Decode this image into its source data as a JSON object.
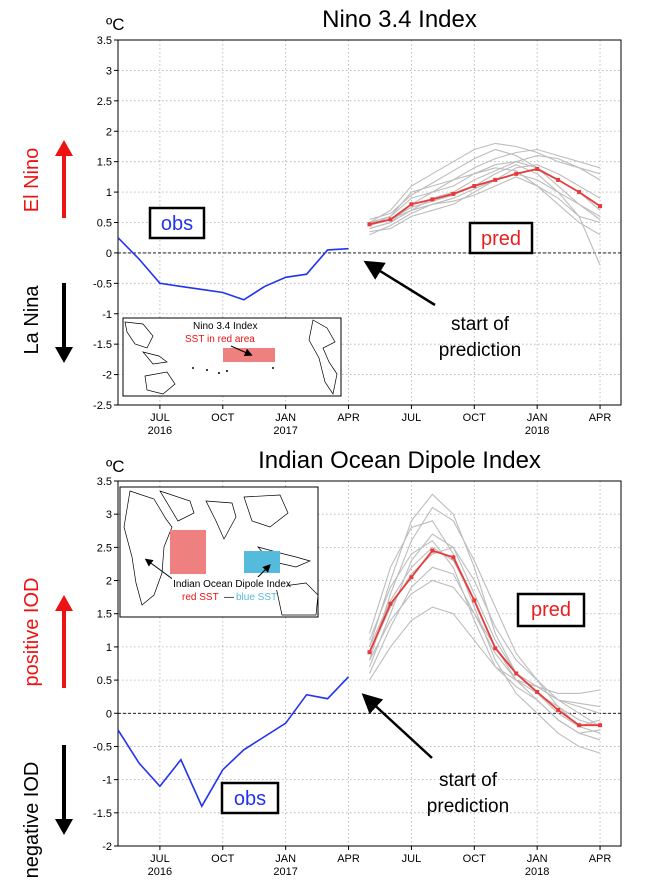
{
  "colors": {
    "obs": "#2233ee",
    "pred_mean": "#e83a3a",
    "pred_member": "#bdbdbd",
    "up": "#ee1111",
    "down": "#000000",
    "map_red": "#ee8080",
    "map_blue": "#55bbdd"
  },
  "chart_data": [
    {
      "type": "line",
      "title": "Nino 3.4 Index",
      "unit": "ºC",
      "ylim": [
        -2.5,
        3.5
      ],
      "yticks": [
        "3.5",
        "3",
        "2.5",
        "2",
        "1.5",
        "1",
        "0.5",
        "0",
        "-0.5",
        "-1",
        "-1.5",
        "-2",
        "-2.5"
      ],
      "xlim": [
        0,
        24
      ],
      "xticks": [
        {
          "x": 2,
          "label": "JUL",
          "year": "2016"
        },
        {
          "x": 5,
          "label": "OCT",
          "year": ""
        },
        {
          "x": 8,
          "label": "JAN",
          "year": "2017"
        },
        {
          "x": 11,
          "label": "APR",
          "year": ""
        },
        {
          "x": 14,
          "label": "JUL",
          "year": ""
        },
        {
          "x": 17,
          "label": "OCT",
          "year": ""
        },
        {
          "x": 20,
          "label": "JAN",
          "year": "2018"
        },
        {
          "x": 23,
          "label": "APR",
          "year": ""
        }
      ],
      "grid": true,
      "upper_label": "El Nino",
      "lower_label": "La Nina",
      "obs_label": "obs",
      "pred_label": "pred",
      "arrow_label": [
        "start of",
        "prediction"
      ],
      "inset": {
        "title": "Nino 3.4 Index",
        "subtitle": "SST in red area"
      },
      "obs": {
        "x": [
          0,
          1,
          2,
          3,
          4,
          5,
          6,
          7,
          8,
          9,
          10,
          11
        ],
        "y": [
          0.25,
          -0.1,
          -0.5,
          -0.55,
          -0.6,
          -0.65,
          -0.77,
          -0.55,
          -0.4,
          -0.35,
          0.05,
          0.07
        ]
      },
      "pred_mean": {
        "x": [
          12,
          13,
          14,
          15,
          16,
          17,
          18,
          19,
          20,
          21,
          22,
          23
        ],
        "y": [
          0.47,
          0.55,
          0.8,
          0.88,
          0.97,
          1.1,
          1.2,
          1.3,
          1.38,
          1.2,
          1.0,
          0.77
        ]
      },
      "pred_members": [
        [
          0.45,
          0.6,
          1.0,
          1.1,
          1.2,
          1.4,
          1.55,
          1.65,
          1.7,
          1.6,
          1.5,
          1.4
        ],
        [
          0.5,
          0.7,
          1.1,
          1.3,
          1.5,
          1.7,
          1.8,
          1.75,
          1.65,
          1.5,
          1.4,
          1.3
        ],
        [
          0.4,
          0.5,
          0.7,
          0.9,
          1.0,
          1.2,
          1.35,
          1.5,
          1.6,
          1.55,
          1.4,
          1.2
        ],
        [
          0.45,
          0.55,
          0.75,
          0.85,
          0.95,
          1.1,
          1.3,
          1.45,
          1.3,
          1.0,
          0.6,
          -0.2
        ],
        [
          0.35,
          0.4,
          0.6,
          0.7,
          0.8,
          1.0,
          1.2,
          1.3,
          1.2,
          1.0,
          0.8,
          0.6
        ],
        [
          0.5,
          0.6,
          0.9,
          1.0,
          1.1,
          1.3,
          1.4,
          1.35,
          1.1,
          0.9,
          0.6,
          0.5
        ],
        [
          0.3,
          0.45,
          0.65,
          0.8,
          0.9,
          1.05,
          1.2,
          1.4,
          1.45,
          1.3,
          1.1,
          0.9
        ],
        [
          0.5,
          0.55,
          0.7,
          0.8,
          0.85,
          0.95,
          1.1,
          1.25,
          1.1,
          0.8,
          0.5,
          0.3
        ],
        [
          0.4,
          0.5,
          0.8,
          1.0,
          1.2,
          1.3,
          1.45,
          1.5,
          1.4,
          1.2,
          1.0,
          0.7
        ],
        [
          0.55,
          0.65,
          0.95,
          1.15,
          1.35,
          1.55,
          1.7,
          1.6,
          1.4,
          1.1,
          0.8,
          0.55
        ]
      ]
    },
    {
      "type": "line",
      "title": "Indian Ocean Dipole Index",
      "unit": "ºC",
      "ylim": [
        -2,
        3.5
      ],
      "yticks": [
        "3.5",
        "3",
        "2.5",
        "2",
        "1.5",
        "1",
        "0.5",
        "0",
        "-0.5",
        "-1",
        "-1.5",
        "-2"
      ],
      "xlim": [
        0,
        24
      ],
      "xticks": [
        {
          "x": 2,
          "label": "JUL",
          "year": "2016"
        },
        {
          "x": 5,
          "label": "OCT",
          "year": ""
        },
        {
          "x": 8,
          "label": "JAN",
          "year": "2017"
        },
        {
          "x": 11,
          "label": "APR",
          "year": ""
        },
        {
          "x": 14,
          "label": "JUL",
          "year": ""
        },
        {
          "x": 17,
          "label": "OCT",
          "year": ""
        },
        {
          "x": 20,
          "label": "JAN",
          "year": "2018"
        },
        {
          "x": 23,
          "label": "APR",
          "year": ""
        }
      ],
      "grid": true,
      "upper_label": "positive IOD",
      "lower_label": "negative IOD",
      "obs_label": "obs",
      "pred_label": "pred",
      "arrow_label": [
        "start of",
        "prediction"
      ],
      "inset": {
        "title": "Indian Ocean Dipole Index",
        "legend_red": "red SST",
        "legend_dash": "—",
        "legend_blue": "blue SST"
      },
      "obs": {
        "x": [
          0,
          1,
          2,
          3,
          4,
          5,
          6,
          7,
          8,
          9,
          10,
          11
        ],
        "y": [
          -0.25,
          -0.75,
          -1.1,
          -0.7,
          -1.4,
          -0.85,
          -0.55,
          -0.35,
          -0.15,
          0.28,
          0.22,
          0.55
        ]
      },
      "pred_mean": {
        "x": [
          12,
          13,
          14,
          15,
          16,
          17,
          18,
          19,
          20,
          21,
          22,
          23
        ],
        "y": [
          0.92,
          1.65,
          2.05,
          2.45,
          2.35,
          1.7,
          0.98,
          0.6,
          0.32,
          0.05,
          -0.18,
          -0.18
        ]
      },
      "pred_members": [
        [
          0.8,
          1.8,
          2.6,
          3.1,
          2.9,
          2.3,
          1.6,
          0.9,
          0.5,
          0.2,
          0.0,
          -0.2
        ],
        [
          1.0,
          2.0,
          2.9,
          3.3,
          3.0,
          2.2,
          1.2,
          0.6,
          0.3,
          0.1,
          -0.2,
          -0.3
        ],
        [
          0.7,
          1.5,
          2.3,
          2.7,
          2.5,
          1.8,
          1.1,
          0.6,
          0.4,
          0.2,
          0.1,
          0.0
        ],
        [
          1.1,
          1.9,
          2.4,
          2.6,
          2.2,
          1.4,
          0.7,
          0.4,
          0.2,
          -0.1,
          -0.3,
          -0.4
        ],
        [
          0.6,
          1.3,
          1.9,
          2.2,
          2.1,
          1.5,
          0.9,
          0.5,
          0.3,
          0.0,
          -0.2,
          -0.1
        ],
        [
          0.9,
          1.6,
          2.1,
          2.4,
          2.5,
          2.0,
          1.3,
          0.8,
          0.5,
          0.1,
          -0.1,
          -0.2
        ],
        [
          0.5,
          1.0,
          1.4,
          1.6,
          1.5,
          1.1,
          0.7,
          0.5,
          0.4,
          0.3,
          0.3,
          0.35
        ],
        [
          1.2,
          2.2,
          2.8,
          2.9,
          2.4,
          1.6,
          0.8,
          0.3,
          0.0,
          -0.3,
          -0.5,
          -0.6
        ],
        [
          0.8,
          1.4,
          1.8,
          2.0,
          1.9,
          1.5,
          1.0,
          0.6,
          0.4,
          0.2,
          0.15,
          0.1
        ],
        [
          1.0,
          1.7,
          2.2,
          2.5,
          2.3,
          1.7,
          1.0,
          0.5,
          0.2,
          -0.1,
          -0.3,
          -0.25
        ]
      ]
    }
  ]
}
